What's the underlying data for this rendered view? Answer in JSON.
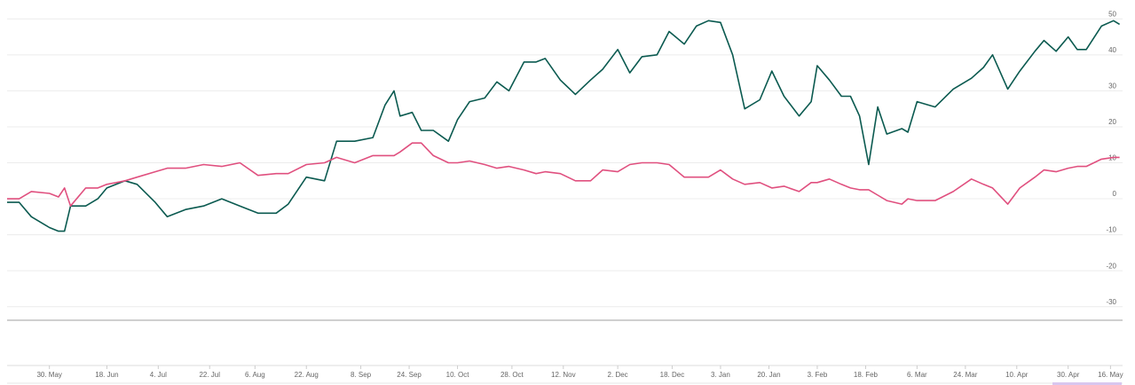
{
  "chart_data": {
    "type": "line",
    "x": [
      0,
      4,
      8,
      14,
      17,
      19,
      21,
      26,
      30,
      33,
      39,
      43,
      49,
      53,
      59,
      65,
      71,
      77,
      83,
      89,
      93,
      99,
      105,
      109,
      115,
      121,
      125,
      128,
      130,
      134,
      137,
      141,
      146,
      149,
      153,
      158,
      162,
      166,
      171,
      175,
      178,
      183,
      188,
      193,
      197,
      202,
      206,
      210,
      215,
      219,
      224,
      228,
      232,
      236,
      240,
      244,
      249,
      253,
      257,
      262,
      266,
      268,
      272,
      276,
      279,
      282,
      285,
      288,
      291,
      296,
      298,
      301,
      307,
      313,
      319,
      323,
      326,
      331,
      335,
      340,
      343,
      347,
      351,
      354,
      357,
      362,
      366,
      368
    ],
    "series": [
      {
        "color": "#0b5a50",
        "values": [
          -1,
          -1,
          -5,
          -8,
          -9,
          -9,
          -2,
          -2,
          0,
          3,
          5,
          4,
          -1,
          -5,
          -3,
          -2,
          0,
          -2,
          -4,
          -4,
          -1.5,
          6,
          5,
          16,
          16,
          17,
          26,
          30,
          23,
          24,
          19,
          19,
          16,
          22,
          27,
          28,
          32.5,
          30,
          38,
          38,
          39,
          33,
          29,
          33,
          36,
          41.5,
          35,
          39.5,
          40,
          46.5,
          43,
          48,
          49.5,
          49,
          40,
          25,
          27.5,
          35.5,
          28.5,
          23,
          27,
          37,
          33,
          28.5,
          28.5,
          23,
          9.5,
          25.5,
          18,
          19.5,
          18.5,
          27,
          25.5,
          30.5,
          33.5,
          36.5,
          40,
          30.5,
          35.5,
          41,
          44,
          41,
          45,
          41.5,
          41.5,
          48,
          49.5,
          48.5
        ]
      },
      {
        "color": "#e0507f",
        "values": [
          0,
          0,
          2,
          1.5,
          0.5,
          3,
          -2,
          3,
          3,
          4,
          5,
          6,
          7.5,
          8.5,
          8.5,
          9.5,
          9,
          10,
          6.5,
          7,
          7,
          9.5,
          10,
          11.5,
          10,
          12,
          12,
          12,
          13,
          15.5,
          15.5,
          12,
          10,
          10,
          10.5,
          9.5,
          8.5,
          9,
          8,
          7,
          7.5,
          7,
          5,
          5,
          8,
          7.5,
          9.5,
          10,
          10,
          9.5,
          6,
          6,
          6,
          8,
          5.5,
          4,
          4.5,
          3,
          3.5,
          2,
          4.5,
          4.5,
          5.5,
          4,
          3,
          2.5,
          2.5,
          1,
          -0.5,
          -1.5,
          0,
          -0.5,
          -0.5,
          2,
          5.5,
          4,
          3,
          -1.5,
          3,
          6,
          8,
          7.5,
          8.5,
          9,
          9,
          11,
          11.5,
          11.5
        ]
      }
    ],
    "xlim": [
      0,
      369
    ],
    "xticks": [
      {
        "value": 14,
        "label": "30. May"
      },
      {
        "value": 33,
        "label": "18. Jun"
      },
      {
        "value": 50,
        "label": "4. Jul"
      },
      {
        "value": 67,
        "label": "22. Jul"
      },
      {
        "value": 82,
        "label": "6. Aug"
      },
      {
        "value": 99,
        "label": "22. Aug"
      },
      {
        "value": 117,
        "label": "8. Sep"
      },
      {
        "value": 133,
        "label": "24. Sep"
      },
      {
        "value": 149,
        "label": "10. Oct"
      },
      {
        "value": 167,
        "label": "28. Oct"
      },
      {
        "value": 184,
        "label": "12. Nov"
      },
      {
        "value": 202,
        "label": "2. Dec"
      },
      {
        "value": 220,
        "label": "18. Dec"
      },
      {
        "value": 236,
        "label": "3. Jan"
      },
      {
        "value": 252,
        "label": "20. Jan"
      },
      {
        "value": 268,
        "label": "3. Feb"
      },
      {
        "value": 284,
        "label": "18. Feb"
      },
      {
        "value": 301,
        "label": "6. Mar"
      },
      {
        "value": 317,
        "label": "24. Mar"
      },
      {
        "value": 334,
        "label": "10. Apr"
      },
      {
        "value": 351,
        "label": "30. Apr"
      },
      {
        "value": 365,
        "label": "16. May"
      }
    ],
    "ylim": [
      -35,
      55
    ],
    "yticks": [
      50,
      40,
      30,
      20,
      10,
      0,
      -10,
      -20,
      -30
    ],
    "grid": true
  }
}
